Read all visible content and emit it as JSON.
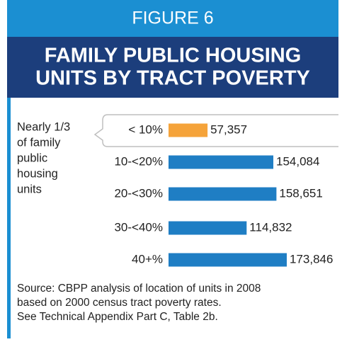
{
  "chart_data": {
    "type": "bar",
    "orientation": "horizontal",
    "figure_label": "FIGURE 6",
    "title_lines": [
      "FAMILY PUBLIC HOUSING",
      "UNITS BY TRACT POVERTY"
    ],
    "annotation_lines": [
      "Nearly 1/3",
      "of family",
      "public",
      "housing",
      "units"
    ],
    "categories": [
      "< 10%",
      "10-<20%",
      "20-<30%",
      "30-<40%",
      "40+%"
    ],
    "values": [
      57357,
      154084,
      158651,
      114832,
      173846
    ],
    "value_labels": [
      "57,357",
      "154,084",
      "158,651",
      "114,832",
      "173,846"
    ],
    "colors": [
      "#f5a33a",
      "#1f7ec4",
      "#1f7ec4",
      "#1f7ec4",
      "#1f7ec4"
    ],
    "source_lines": [
      "Source: CBPP analysis of location of units in 2008",
      "based on 2000 census tract poverty rates.",
      "See Technical Appendix Part C, Table 2b."
    ]
  }
}
